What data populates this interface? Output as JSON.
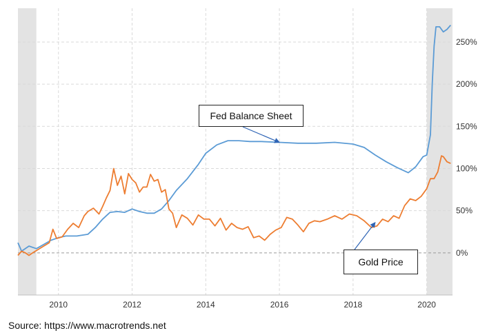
{
  "chart_data": {
    "type": "line",
    "title": "",
    "xlabel": "",
    "ylabel": "",
    "xlim": [
      2008.9,
      2020.7
    ],
    "ylim": [
      -50,
      290
    ],
    "x_ticks": [
      2010,
      2012,
      2014,
      2016,
      2018,
      2020
    ],
    "x_tick_labels": [
      "2010",
      "2012",
      "2014",
      "2016",
      "2018",
      "2020"
    ],
    "y_ticks": [
      0,
      50,
      100,
      150,
      200,
      250
    ],
    "y_tick_labels": [
      "0%",
      "50%",
      "100%",
      "150%",
      "200%",
      "250%"
    ],
    "grid": true,
    "recessions": [
      [
        2008.9,
        2009.4
      ],
      [
        2020.0,
        2020.7
      ]
    ],
    "series": [
      {
        "name": "Fed Balance Sheet",
        "color": "#5b9bd5",
        "x": [
          2008.9,
          2009.0,
          2009.2,
          2009.4,
          2009.6,
          2009.8,
          2010.0,
          2010.2,
          2010.5,
          2010.8,
          2011.0,
          2011.2,
          2011.4,
          2011.6,
          2011.8,
          2012.0,
          2012.2,
          2012.4,
          2012.6,
          2012.8,
          2013.0,
          2013.2,
          2013.5,
          2013.8,
          2014.0,
          2014.3,
          2014.6,
          2014.9,
          2015.2,
          2015.5,
          2016.0,
          2016.5,
          2017.0,
          2017.5,
          2018.0,
          2018.3,
          2018.6,
          2018.9,
          2019.2,
          2019.5,
          2019.7,
          2019.8,
          2019.9,
          2020.0,
          2020.1,
          2020.15,
          2020.2,
          2020.25,
          2020.35,
          2020.45,
          2020.55,
          2020.65
        ],
        "values": [
          12,
          2,
          8,
          5,
          10,
          15,
          18,
          20,
          20,
          22,
          30,
          40,
          48,
          49,
          48,
          52,
          49,
          47,
          47,
          52,
          62,
          74,
          88,
          105,
          118,
          128,
          133,
          133,
          132,
          132,
          131,
          130,
          130,
          131,
          129,
          125,
          116,
          108,
          101,
          95,
          102,
          108,
          114,
          116,
          140,
          200,
          245,
          268,
          268,
          262,
          265,
          270
        ]
      },
      {
        "name": "Gold Price",
        "color": "#ed7d31",
        "x": [
          2008.9,
          2009.0,
          2009.1,
          2009.2,
          2009.3,
          2009.45,
          2009.6,
          2009.75,
          2009.85,
          2009.95,
          2010.1,
          2010.25,
          2010.4,
          2010.55,
          2010.7,
          2010.8,
          2010.95,
          2011.1,
          2011.2,
          2011.3,
          2011.4,
          2011.5,
          2011.6,
          2011.7,
          2011.8,
          2011.9,
          2012.0,
          2012.1,
          2012.2,
          2012.3,
          2012.4,
          2012.5,
          2012.6,
          2012.7,
          2012.8,
          2012.9,
          2013.0,
          2013.1,
          2013.2,
          2013.35,
          2013.5,
          2013.65,
          2013.8,
          2013.95,
          2014.1,
          2014.25,
          2014.4,
          2014.55,
          2014.7,
          2014.85,
          2015.0,
          2015.15,
          2015.3,
          2015.45,
          2015.6,
          2015.75,
          2015.9,
          2016.05,
          2016.2,
          2016.35,
          2016.5,
          2016.65,
          2016.8,
          2016.95,
          2017.1,
          2017.3,
          2017.5,
          2017.7,
          2017.9,
          2018.1,
          2018.3,
          2018.5,
          2018.65,
          2018.8,
          2018.95,
          2019.1,
          2019.25,
          2019.4,
          2019.55,
          2019.7,
          2019.85,
          2020.0,
          2020.1,
          2020.2,
          2020.3,
          2020.4,
          2020.45,
          2020.55,
          2020.65
        ],
        "values": [
          -3,
          2,
          0,
          -3,
          0,
          4,
          8,
          12,
          28,
          17,
          19,
          28,
          35,
          30,
          44,
          49,
          53,
          46,
          55,
          65,
          74,
          100,
          80,
          91,
          70,
          94,
          87,
          83,
          72,
          78,
          78,
          93,
          85,
          87,
          72,
          75,
          52,
          47,
          30,
          45,
          41,
          33,
          45,
          40,
          40,
          32,
          41,
          27,
          35,
          30,
          28,
          31,
          18,
          20,
          15,
          22,
          27,
          30,
          42,
          40,
          33,
          25,
          35,
          38,
          37,
          40,
          44,
          40,
          46,
          44,
          38,
          30,
          32,
          40,
          37,
          44,
          41,
          56,
          64,
          62,
          67,
          76,
          88,
          88,
          96,
          115,
          114,
          108,
          106
        ]
      }
    ],
    "annotations": [
      {
        "text": "Fed Balance Sheet",
        "target_series": "Fed Balance Sheet",
        "target_x": 2016.0,
        "target_y": 131
      },
      {
        "text": "Gold Price",
        "target_series": "Gold Price",
        "target_x": 2018.6,
        "target_y": 36
      }
    ]
  },
  "source_text": "Source: https://www.macrotrends.net"
}
